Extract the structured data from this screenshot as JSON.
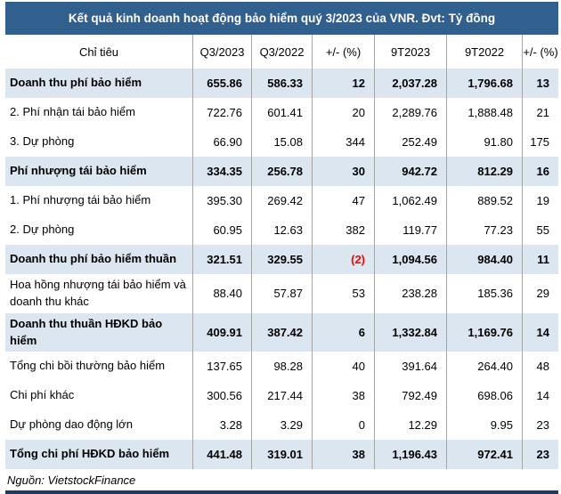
{
  "title": "Kết quả kinh doanh hoạt động bảo hiểm quý 3/2023 của VNR. Đvt: Tỷ đồng",
  "source_note": "Nguồn: VietstockFinance",
  "colors": {
    "title_bar_bg": "#31608E",
    "title_text": "#FFFFFF",
    "highlight_row_bg": "#DCE6F1",
    "column_divider": "#A6A6A6",
    "negative_value": "#FF0000",
    "bottom_rule": "#1F3864",
    "body_text": "#000000"
  },
  "table": {
    "columns": [
      "Chỉ tiêu",
      "Q3/2023",
      "Q3/2022",
      "+/- (%)",
      "9T2023",
      "9T2022",
      "+/- (%)"
    ],
    "rows": [
      {
        "label": "Doanh thu phí bảo hiểm",
        "values": [
          "655.86",
          "586.33",
          "12",
          "2,037.28",
          "1,796.68",
          "13"
        ],
        "emphasis": true
      },
      {
        "label": "2. Phí nhận tái bảo hiểm",
        "values": [
          "722.76",
          "601.41",
          "20",
          "2,289.76",
          "1,888.48",
          "21"
        ],
        "emphasis": false
      },
      {
        "label": "3. Dự phòng",
        "values": [
          "66.90",
          "15.08",
          "344",
          "252.49",
          "91.80",
          "175"
        ],
        "emphasis": false
      },
      {
        "label": "Phí nhượng tái bảo hiểm",
        "values": [
          "334.35",
          "256.78",
          "30",
          "942.72",
          "812.29",
          "16"
        ],
        "emphasis": true
      },
      {
        "label": "1. Phí nhượng tái bảo hiểm",
        "values": [
          "395.30",
          "269.42",
          "47",
          "1,062.49",
          "889.52",
          "19"
        ],
        "emphasis": false
      },
      {
        "label": "2. Dự phòng",
        "values": [
          "60.95",
          "12.63",
          "382",
          "119.77",
          "77.23",
          "55"
        ],
        "emphasis": false
      },
      {
        "label": "Doanh thu phí bảo hiểm thuần",
        "values": [
          "321.51",
          "329.55",
          "(2)",
          "1,094.56",
          "984.40",
          "11"
        ],
        "emphasis": true
      },
      {
        "label": "Hoa hồng nhượng tái bảo hiểm và doanh thu khác",
        "values": [
          "88.40",
          "57.87",
          "53",
          "238.28",
          "185.36",
          "29"
        ],
        "emphasis": false
      },
      {
        "label": "Doanh thu thuần HĐKD bảo hiểm",
        "values": [
          "409.91",
          "387.42",
          "6",
          "1,332.84",
          "1,169.76",
          "14"
        ],
        "emphasis": true
      },
      {
        "label": "Tổng chi bồi thường bảo hiểm",
        "values": [
          "137.65",
          "98.28",
          "40",
          "391.64",
          "264.40",
          "48"
        ],
        "emphasis": false
      },
      {
        "label": "Chi phí khác",
        "values": [
          "300.56",
          "217.44",
          "38",
          "792.49",
          "698.06",
          "14"
        ],
        "emphasis": false
      },
      {
        "label": "Dự phòng dao động lớn",
        "values": [
          "3.28",
          "3.29",
          "0",
          "12.29",
          "9.95",
          "23"
        ],
        "emphasis": false
      },
      {
        "label": "Tổng chi phí HĐKD bảo hiểm",
        "values": [
          "441.48",
          "319.01",
          "38",
          "1,196.43",
          "972.41",
          "23"
        ],
        "emphasis": true
      }
    ]
  }
}
